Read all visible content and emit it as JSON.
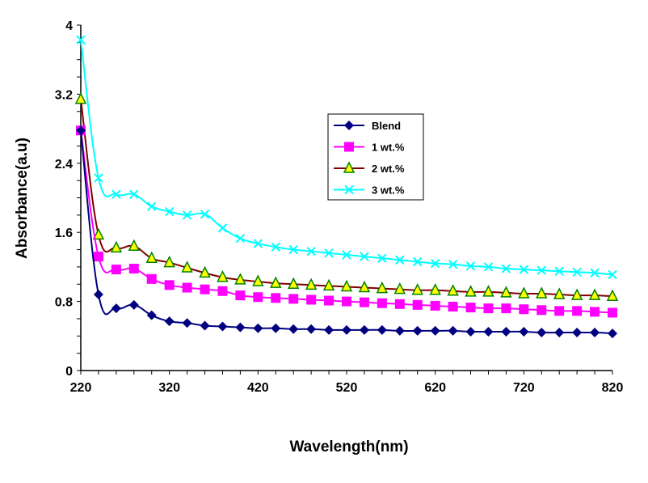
{
  "chart_data": {
    "type": "line",
    "title": "",
    "xlabel": "Wavelength(nm)",
    "ylabel": "Absorbance(a.u)",
    "xlim": [
      220,
      820
    ],
    "ylim": [
      0,
      4
    ],
    "xticks": [
      "220",
      "320",
      "420",
      "520",
      "620",
      "720",
      "820"
    ],
    "yticks": [
      "0",
      "0.8",
      "1.6",
      "2.4",
      "3.2",
      "4"
    ],
    "grid": false,
    "legend_position": "center-right",
    "x": [
      220,
      240,
      260,
      280,
      300,
      320,
      340,
      360,
      380,
      400,
      420,
      440,
      460,
      480,
      500,
      520,
      540,
      560,
      580,
      600,
      620,
      640,
      660,
      680,
      700,
      720,
      740,
      760,
      780,
      800,
      820
    ],
    "series": [
      {
        "name": "Blend",
        "color": "#000080",
        "marker": "diamond",
        "values": [
          2.78,
          0.88,
          0.72,
          0.76,
          0.64,
          0.57,
          0.55,
          0.52,
          0.51,
          0.5,
          0.49,
          0.49,
          0.48,
          0.48,
          0.47,
          0.47,
          0.47,
          0.47,
          0.46,
          0.46,
          0.46,
          0.46,
          0.45,
          0.45,
          0.45,
          0.45,
          0.44,
          0.44,
          0.44,
          0.44,
          0.43
        ]
      },
      {
        "name": "1 wt.%",
        "color": "#FF00FF",
        "marker": "square",
        "values": [
          2.78,
          1.32,
          1.17,
          1.18,
          1.06,
          0.99,
          0.96,
          0.94,
          0.92,
          0.87,
          0.85,
          0.84,
          0.83,
          0.82,
          0.81,
          0.8,
          0.79,
          0.78,
          0.77,
          0.76,
          0.75,
          0.74,
          0.73,
          0.72,
          0.72,
          0.71,
          0.7,
          0.69,
          0.69,
          0.68,
          0.67
        ]
      },
      {
        "name": "2 wt.%",
        "color": "#800000",
        "marker": "triangle",
        "values": [
          3.14,
          1.57,
          1.42,
          1.44,
          1.3,
          1.25,
          1.19,
          1.13,
          1.08,
          1.05,
          1.03,
          1.01,
          1.0,
          0.99,
          0.98,
          0.97,
          0.96,
          0.95,
          0.94,
          0.93,
          0.93,
          0.92,
          0.91,
          0.91,
          0.9,
          0.89,
          0.89,
          0.88,
          0.87,
          0.87,
          0.86
        ]
      },
      {
        "name": "3 wt.%",
        "color": "#00FFFF",
        "marker": "x",
        "values": [
          3.83,
          2.23,
          2.04,
          2.04,
          1.9,
          1.84,
          1.8,
          1.81,
          1.65,
          1.53,
          1.47,
          1.43,
          1.4,
          1.38,
          1.36,
          1.34,
          1.32,
          1.3,
          1.28,
          1.26,
          1.24,
          1.23,
          1.21,
          1.2,
          1.18,
          1.17,
          1.16,
          1.15,
          1.14,
          1.13,
          1.11
        ]
      }
    ]
  }
}
